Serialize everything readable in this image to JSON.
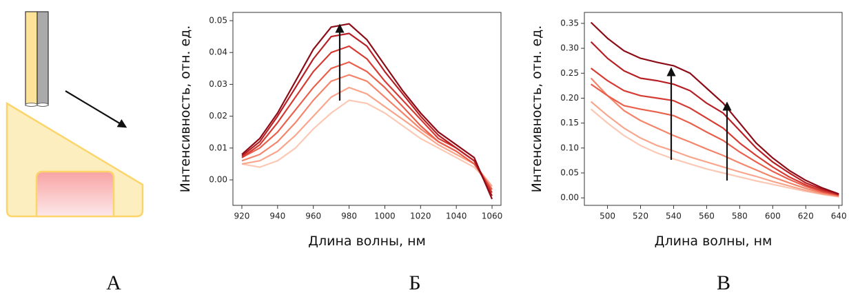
{
  "panel_labels": [
    "А",
    "Б",
    "В"
  ],
  "chart_data": [
    {
      "type": "line",
      "xlabel": "Длина волны, нм",
      "ylabel": "Интенсивность, отн. ед.",
      "x": [
        920,
        930,
        940,
        950,
        960,
        970,
        980,
        990,
        1000,
        1010,
        1020,
        1030,
        1040,
        1050,
        1060
      ],
      "xlim": [
        915,
        1065
      ],
      "xticks": [
        920,
        940,
        960,
        980,
        1000,
        1020,
        1040,
        1060
      ],
      "ylim": [
        -0.008,
        0.0526
      ],
      "yticks": [
        {
          "value": 0,
          "label": "0.00"
        },
        {
          "value": 0.01,
          "label": "0.01"
        },
        {
          "value": 0.02,
          "label": "0.02"
        },
        {
          "value": 0.03,
          "label": "0.03"
        },
        {
          "value": 0.04,
          "label": "0.04"
        },
        {
          "value": 0.05,
          "label": "0.05"
        }
      ],
      "series": [
        {
          "color": "#fbc8b4",
          "values": [
            0.005,
            0.004,
            0.006,
            0.01,
            0.016,
            0.021,
            0.025,
            0.024,
            0.021,
            0.017,
            0.013,
            0.01,
            0.007,
            0.004,
            -0.002
          ]
        },
        {
          "color": "#f9a58c",
          "values": [
            0.005,
            0.006,
            0.009,
            0.014,
            0.02,
            0.026,
            0.029,
            0.027,
            0.023,
            0.019,
            0.015,
            0.011,
            0.008,
            0.005,
            -0.002
          ]
        },
        {
          "color": "#f4846a",
          "values": [
            0.006,
            0.008,
            0.012,
            0.018,
            0.025,
            0.031,
            0.033,
            0.031,
            0.026,
            0.021,
            0.016,
            0.012,
            0.009,
            0.005,
            -0.003
          ]
        },
        {
          "color": "#ea5f4b",
          "values": [
            0.007,
            0.01,
            0.015,
            0.022,
            0.029,
            0.035,
            0.037,
            0.034,
            0.029,
            0.023,
            0.017,
            0.012,
            0.009,
            0.005,
            -0.003
          ]
        },
        {
          "color": "#d63b33",
          "values": [
            0.007,
            0.011,
            0.018,
            0.026,
            0.034,
            0.04,
            0.042,
            0.038,
            0.031,
            0.025,
            0.019,
            0.013,
            0.01,
            0.006,
            -0.004
          ]
        },
        {
          "color": "#b71f24",
          "values": [
            0.0075,
            0.012,
            0.02,
            0.029,
            0.038,
            0.045,
            0.046,
            0.042,
            0.034,
            0.027,
            0.02,
            0.014,
            0.01,
            0.006,
            -0.005
          ]
        },
        {
          "color": "#8c0b16",
          "values": [
            0.008,
            0.013,
            0.021,
            0.031,
            0.041,
            0.048,
            0.049,
            0.044,
            0.036,
            0.028,
            0.021,
            0.015,
            0.011,
            0.007,
            -0.006
          ]
        }
      ]
    },
    {
      "type": "line",
      "xlabel": "Длина волны, нм",
      "ylabel": "Интенсивность, отн. ед.",
      "x": [
        490,
        500,
        510,
        520,
        530,
        540,
        550,
        560,
        570,
        580,
        590,
        600,
        610,
        620,
        630,
        640
      ],
      "xlim": [
        486,
        642
      ],
      "xticks": [
        500,
        520,
        540,
        560,
        580,
        600,
        620,
        640
      ],
      "ylim": [
        -0.015,
        0.372
      ],
      "yticks": [
        {
          "value": 0,
          "label": "0.00"
        },
        {
          "value": 0.05,
          "label": "0.05"
        },
        {
          "value": 0.1,
          "label": "0.10"
        },
        {
          "value": 0.15,
          "label": "0.15"
        },
        {
          "value": 0.2,
          "label": "0.20"
        },
        {
          "value": 0.25,
          "label": "0.25"
        },
        {
          "value": 0.3,
          "label": "0.30"
        },
        {
          "value": 0.35,
          "label": "0.35"
        }
      ],
      "series": [
        {
          "color": "#fbc8b4",
          "values": [
            0.178,
            0.15,
            0.125,
            0.105,
            0.09,
            0.078,
            0.068,
            0.058,
            0.05,
            0.042,
            0.034,
            0.027,
            0.02,
            0.013,
            0.007,
            0.002
          ]
        },
        {
          "color": "#f9a58c",
          "values": [
            0.193,
            0.165,
            0.14,
            0.12,
            0.105,
            0.094,
            0.082,
            0.072,
            0.062,
            0.052,
            0.043,
            0.033,
            0.024,
            0.015,
            0.008,
            0.003
          ]
        },
        {
          "color": "#f4846a",
          "values": [
            0.24,
            0.205,
            0.175,
            0.155,
            0.14,
            0.125,
            0.112,
            0.098,
            0.085,
            0.07,
            0.056,
            0.042,
            0.03,
            0.019,
            0.01,
            0.004
          ]
        },
        {
          "color": "#ea5f4b",
          "values": [
            0.228,
            0.205,
            0.185,
            0.178,
            0.172,
            0.165,
            0.15,
            0.132,
            0.115,
            0.092,
            0.072,
            0.053,
            0.037,
            0.023,
            0.012,
            0.005
          ]
        },
        {
          "color": "#d63b33",
          "values": [
            0.26,
            0.235,
            0.215,
            0.205,
            0.2,
            0.195,
            0.18,
            0.16,
            0.14,
            0.11,
            0.085,
            0.062,
            0.042,
            0.026,
            0.014,
            0.006
          ]
        },
        {
          "color": "#b71f24",
          "values": [
            0.313,
            0.28,
            0.255,
            0.24,
            0.235,
            0.228,
            0.215,
            0.19,
            0.17,
            0.135,
            0.1,
            0.072,
            0.05,
            0.03,
            0.017,
            0.007
          ]
        },
        {
          "color": "#8c0b16",
          "values": [
            0.352,
            0.32,
            0.295,
            0.28,
            0.272,
            0.265,
            0.25,
            0.22,
            0.19,
            0.15,
            0.11,
            0.08,
            0.055,
            0.035,
            0.02,
            0.008
          ]
        }
      ]
    }
  ]
}
